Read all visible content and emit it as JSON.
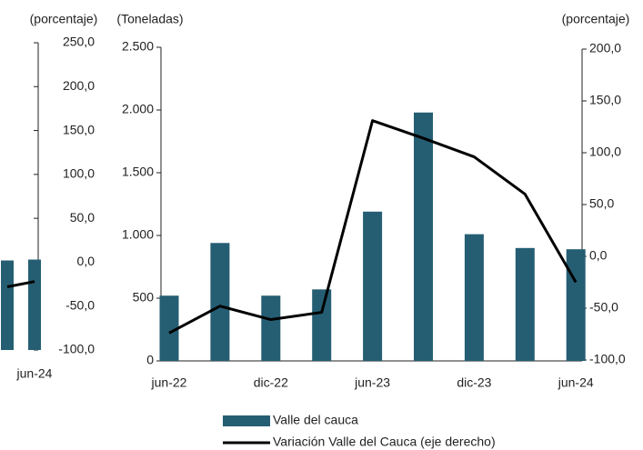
{
  "chart_data": [
    {
      "type": "bar",
      "y2label": "(porcentaje)",
      "categories": [
        null,
        "jun-24"
      ],
      "y2lim": [
        -100,
        250
      ],
      "y2ticks": [
        {
          "value": 250,
          "label": "250,0"
        },
        {
          "value": 200,
          "label": "200,0"
        },
        {
          "value": 150,
          "label": "150,0"
        },
        {
          "value": 100,
          "label": "100,0"
        },
        {
          "value": 50,
          "label": "50,0"
        },
        {
          "value": 0,
          "label": "0,0"
        },
        {
          "value": -50,
          "label": "-50,0"
        },
        {
          "value": -100,
          "label": "-100,0"
        }
      ],
      "series": [
        {
          "kind": "bar",
          "axis": "y2",
          "color": "#255e73",
          "values": [
            2,
            3
          ]
        },
        {
          "kind": "line",
          "axis": "y2",
          "color": "#000000",
          "values": [
            -28,
            -22
          ]
        }
      ]
    },
    {
      "type": "bar",
      "ylabel": "(Toneladas)",
      "y2label": "(porcentaje)",
      "categories": [
        "jun-22",
        null,
        "dic-22",
        null,
        "jun-23",
        null,
        "dic-23",
        null,
        "jun-24"
      ],
      "ylim": [
        0,
        2500
      ],
      "yticks": [
        {
          "value": 2500,
          "label": "2.500"
        },
        {
          "value": 2000,
          "label": "2.000"
        },
        {
          "value": 1500,
          "label": "1.500"
        },
        {
          "value": 1000,
          "label": "1.000"
        },
        500,
        0
      ],
      "y2lim": [
        -100,
        200
      ],
      "y2ticks": [
        {
          "value": 200,
          "label": "200,0"
        },
        {
          "value": 150,
          "label": "150,0"
        },
        {
          "value": 100,
          "label": "100,0"
        },
        {
          "value": 50,
          "label": "50,0"
        },
        {
          "value": 0,
          "label": "0,0"
        },
        {
          "value": -50,
          "label": "-50,0"
        },
        {
          "value": -100,
          "label": "-100,0"
        }
      ],
      "series": [
        {
          "kind": "bar",
          "name": "Valle del  cauca",
          "color": "#255e73",
          "values": [
            520,
            940,
            520,
            570,
            1190,
            1980,
            1010,
            900,
            890
          ]
        },
        {
          "kind": "line",
          "axis": "y2",
          "name": "Variación Valle del Cauca (eje derecho)",
          "color": "#000000",
          "values": [
            -74,
            -48,
            -61,
            -54,
            131,
            114,
            96,
            60,
            -25
          ]
        }
      ]
    }
  ]
}
